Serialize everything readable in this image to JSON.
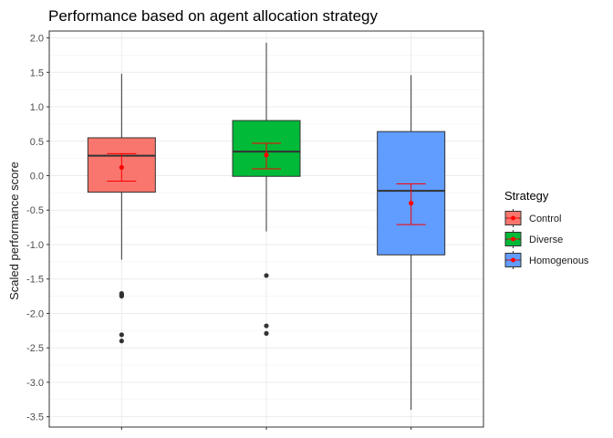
{
  "chart_data": {
    "type": "boxplot",
    "title": "Performance based on agent allocation strategy",
    "xlabel": "",
    "ylabel": "Scaled performance score",
    "ylim": [
      -3.65,
      2.1
    ],
    "yticks": [
      2.0,
      1.5,
      1.0,
      0.5,
      0.0,
      -0.5,
      -1.0,
      -1.5,
      -2.0,
      -2.5,
      -3.0,
      -3.5
    ],
    "ytick_labels": [
      "2.0",
      "1.5",
      "1.0",
      "0.5",
      "0.0",
      "-0.5",
      "-1.0",
      "-1.5",
      "-2.0",
      "-2.5",
      "-3.0",
      "-3.5"
    ],
    "grid": true,
    "legend": {
      "title": "Strategy",
      "position": "right"
    },
    "mean_color": "#ff0000",
    "series": [
      {
        "name": "Control",
        "color": "#f8766d",
        "whisker_low": -1.22,
        "q1": -0.24,
        "median": 0.29,
        "q3": 0.55,
        "whisker_high": 1.48,
        "outliers": [
          -1.71,
          -1.73,
          -1.75,
          -2.31,
          -2.4
        ],
        "mean": 0.12,
        "error_low": -0.08,
        "error_high": 0.32
      },
      {
        "name": "Diverse",
        "color": "#00ba38",
        "whisker_low": -0.81,
        "q1": -0.01,
        "median": 0.35,
        "q3": 0.8,
        "whisker_high": 1.93,
        "outliers": [
          -1.45,
          -2.18,
          -2.29
        ],
        "mean": 0.3,
        "error_low": 0.1,
        "error_high": 0.47
      },
      {
        "name": "Homogenous",
        "color": "#619cff",
        "whisker_low": -3.4,
        "q1": -1.15,
        "median": -0.22,
        "q3": 0.64,
        "whisker_high": 1.46,
        "outliers": [],
        "mean": -0.4,
        "error_low": -0.71,
        "error_high": -0.12
      }
    ]
  }
}
